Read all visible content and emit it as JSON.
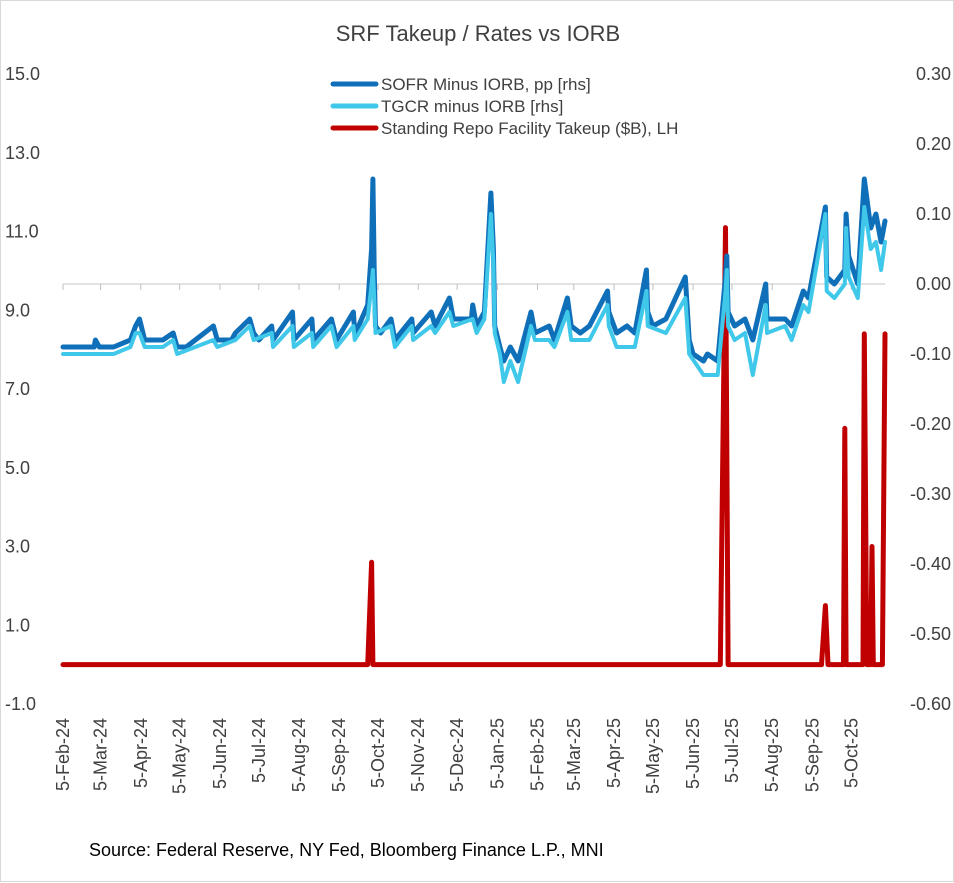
{
  "chart_data": {
    "type": "line",
    "title": "SRF Takeup / Rates vs IORB",
    "source": "Source: Federal Reserve, NY Fed, Bloomberg Finance L.P., MNI",
    "left_axis": {
      "range": [
        -1.0,
        15.0
      ],
      "ticks": [
        -1.0,
        1.0,
        3.0,
        5.0,
        7.0,
        9.0,
        11.0,
        13.0,
        15.0
      ],
      "tick_labels": [
        "-1.0",
        "1.0",
        "3.0",
        "5.0",
        "7.0",
        "9.0",
        "11.0",
        "13.0",
        "15.0"
      ]
    },
    "right_axis": {
      "range": [
        -0.6,
        0.3
      ],
      "ticks": [
        -0.6,
        -0.5,
        -0.4,
        -0.3,
        -0.2,
        -0.1,
        0.0,
        0.1,
        0.2,
        0.3
      ],
      "tick_labels": [
        "-0.60",
        "-0.50",
        "-0.40",
        "-0.30",
        "-0.20",
        "-0.10",
        "0.00",
        "0.10",
        "0.20",
        "0.30"
      ]
    },
    "x_axis": {
      "start_date": "2024-02-05",
      "end_date": "2025-10-31",
      "ticks": [
        {
          "date": "2024-02-05",
          "label": "5-Feb-24"
        },
        {
          "date": "2024-03-05",
          "label": "5-Mar-24"
        },
        {
          "date": "2024-04-05",
          "label": "5-Apr-24"
        },
        {
          "date": "2024-05-05",
          "label": "5-May-24"
        },
        {
          "date": "2024-06-05",
          "label": "5-Jun-24"
        },
        {
          "date": "2024-07-05",
          "label": "5-Jul-24"
        },
        {
          "date": "2024-08-05",
          "label": "5-Aug-24"
        },
        {
          "date": "2024-09-05",
          "label": "5-Sep-24"
        },
        {
          "date": "2024-10-05",
          "label": "5-Oct-24"
        },
        {
          "date": "2024-11-05",
          "label": "5-Nov-24"
        },
        {
          "date": "2024-12-05",
          "label": "5-Dec-24"
        },
        {
          "date": "2025-01-05",
          "label": "5-Jan-25"
        },
        {
          "date": "2025-02-05",
          "label": "5-Feb-25"
        },
        {
          "date": "2025-03-05",
          "label": "5-Mar-25"
        },
        {
          "date": "2025-04-05",
          "label": "5-Apr-25"
        },
        {
          "date": "2025-05-05",
          "label": "5-May-25"
        },
        {
          "date": "2025-06-05",
          "label": "5-Jun-25"
        },
        {
          "date": "2025-07-05",
          "label": "5-Jul-25"
        },
        {
          "date": "2025-08-05",
          "label": "5-Aug-25"
        },
        {
          "date": "2025-09-05",
          "label": "5-Sep-25"
        },
        {
          "date": "2025-10-05",
          "label": "5-Oct-25"
        }
      ]
    },
    "legend": {
      "position": "top-center",
      "entries": [
        {
          "name": "SOFR Minus IORB, pp [rhs]",
          "color": "#0f6fb8"
        },
        {
          "name": "TGCR minus IORB [rhs]",
          "color": "#3fc8ea"
        },
        {
          "name": "Standing Repo Facility Takeup ($B), LH",
          "color": "#c00000"
        }
      ]
    },
    "series": [
      {
        "name": "SOFR Minus IORB, pp [rhs]",
        "axis": "right",
        "color": "#0f6fb8",
        "points": [
          [
            "2024-02-05",
            -0.09
          ],
          [
            "2024-02-15",
            -0.09
          ],
          [
            "2024-02-29",
            -0.09
          ],
          [
            "2024-03-01",
            -0.08
          ],
          [
            "2024-03-04",
            -0.09
          ],
          [
            "2024-03-15",
            -0.09
          ],
          [
            "2024-03-28",
            -0.08
          ],
          [
            "2024-04-01",
            -0.06
          ],
          [
            "2024-04-04",
            -0.05
          ],
          [
            "2024-04-08",
            -0.08
          ],
          [
            "2024-04-15",
            -0.08
          ],
          [
            "2024-04-22",
            -0.08
          ],
          [
            "2024-04-30",
            -0.07
          ],
          [
            "2024-05-03",
            -0.09
          ],
          [
            "2024-05-10",
            -0.09
          ],
          [
            "2024-05-31",
            -0.06
          ],
          [
            "2024-06-03",
            -0.08
          ],
          [
            "2024-06-14",
            -0.08
          ],
          [
            "2024-06-17",
            -0.07
          ],
          [
            "2024-06-28",
            -0.05
          ],
          [
            "2024-07-01",
            -0.07
          ],
          [
            "2024-07-05",
            -0.08
          ],
          [
            "2024-07-15",
            -0.06
          ],
          [
            "2024-07-16",
            -0.08
          ],
          [
            "2024-07-31",
            -0.04
          ],
          [
            "2024-08-01",
            -0.08
          ],
          [
            "2024-08-15",
            -0.05
          ],
          [
            "2024-08-16",
            -0.08
          ],
          [
            "2024-08-30",
            -0.05
          ],
          [
            "2024-09-03",
            -0.08
          ],
          [
            "2024-09-16",
            -0.04
          ],
          [
            "2024-09-17",
            -0.07
          ],
          [
            "2024-09-20",
            -0.06
          ],
          [
            "2024-09-27",
            -0.03
          ],
          [
            "2024-09-30",
            0.05
          ],
          [
            "2024-10-01",
            0.15
          ],
          [
            "2024-10-02",
            0.02
          ],
          [
            "2024-10-03",
            -0.06
          ],
          [
            "2024-10-07",
            -0.07
          ],
          [
            "2024-10-15",
            -0.05
          ],
          [
            "2024-10-18",
            -0.08
          ],
          [
            "2024-10-31",
            -0.05
          ],
          [
            "2024-11-01",
            -0.07
          ],
          [
            "2024-11-15",
            -0.04
          ],
          [
            "2024-11-18",
            -0.06
          ],
          [
            "2024-11-29",
            -0.02
          ],
          [
            "2024-12-02",
            -0.05
          ],
          [
            "2024-12-16",
            -0.05
          ],
          [
            "2024-12-17",
            -0.03
          ],
          [
            "2024-12-20",
            -0.06
          ],
          [
            "2024-12-26",
            -0.04
          ],
          [
            "2024-12-31",
            0.13
          ],
          [
            "2025-01-02",
            0.05
          ],
          [
            "2025-01-03",
            -0.06
          ],
          [
            "2025-01-07",
            -0.09
          ],
          [
            "2025-01-10",
            -0.11
          ],
          [
            "2025-01-15",
            -0.09
          ],
          [
            "2025-01-21",
            -0.11
          ],
          [
            "2025-01-31",
            -0.04
          ],
          [
            "2025-02-03",
            -0.07
          ],
          [
            "2025-02-14",
            -0.06
          ],
          [
            "2025-02-18",
            -0.08
          ],
          [
            "2025-02-28",
            -0.02
          ],
          [
            "2025-03-03",
            -0.06
          ],
          [
            "2025-03-10",
            -0.07
          ],
          [
            "2025-03-17",
            -0.06
          ],
          [
            "2025-03-31",
            -0.01
          ],
          [
            "2025-04-01",
            -0.04
          ],
          [
            "2025-04-07",
            -0.07
          ],
          [
            "2025-04-15",
            -0.06
          ],
          [
            "2025-04-21",
            -0.07
          ],
          [
            "2025-04-30",
            0.02
          ],
          [
            "2025-05-01",
            -0.04
          ],
          [
            "2025-05-05",
            -0.06
          ],
          [
            "2025-05-15",
            -0.05
          ],
          [
            "2025-05-30",
            0.01
          ],
          [
            "2025-06-02",
            -0.08
          ],
          [
            "2025-06-05",
            -0.1
          ],
          [
            "2025-06-13",
            -0.11
          ],
          [
            "2025-06-16",
            -0.1
          ],
          [
            "2025-06-24",
            -0.11
          ],
          [
            "2025-06-30",
            0.01
          ],
          [
            "2025-07-01",
            0.04
          ],
          [
            "2025-07-02",
            -0.04
          ],
          [
            "2025-07-07",
            -0.06
          ],
          [
            "2025-07-15",
            -0.05
          ],
          [
            "2025-07-21",
            -0.08
          ],
          [
            "2025-07-31",
            0.0
          ],
          [
            "2025-08-01",
            -0.05
          ],
          [
            "2025-08-15",
            -0.05
          ],
          [
            "2025-08-20",
            -0.06
          ],
          [
            "2025-08-29",
            -0.01
          ],
          [
            "2025-09-02",
            -0.02
          ],
          [
            "2025-09-15",
            0.11
          ],
          [
            "2025-09-16",
            0.01
          ],
          [
            "2025-09-22",
            0.0
          ],
          [
            "2025-09-30",
            0.02
          ],
          [
            "2025-10-01",
            0.1
          ],
          [
            "2025-10-03",
            0.04
          ],
          [
            "2025-10-10",
            0.0
          ],
          [
            "2025-10-15",
            0.15
          ],
          [
            "2025-10-20",
            0.08
          ],
          [
            "2025-10-24",
            0.1
          ],
          [
            "2025-10-28",
            0.06
          ],
          [
            "2025-10-31",
            0.09
          ]
        ]
      },
      {
        "name": "TGCR minus IORB [rhs]",
        "axis": "right",
        "color": "#3fc8ea",
        "points": [
          [
            "2024-02-05",
            -0.1
          ],
          [
            "2024-02-29",
            -0.1
          ],
          [
            "2024-03-01",
            -0.1
          ],
          [
            "2024-03-15",
            -0.1
          ],
          [
            "2024-03-28",
            -0.09
          ],
          [
            "2024-04-01",
            -0.07
          ],
          [
            "2024-04-04",
            -0.07
          ],
          [
            "2024-04-08",
            -0.09
          ],
          [
            "2024-04-22",
            -0.09
          ],
          [
            "2024-04-30",
            -0.08
          ],
          [
            "2024-05-03",
            -0.1
          ],
          [
            "2024-05-31",
            -0.08
          ],
          [
            "2024-06-03",
            -0.09
          ],
          [
            "2024-06-17",
            -0.08
          ],
          [
            "2024-06-28",
            -0.06
          ],
          [
            "2024-07-01",
            -0.08
          ],
          [
            "2024-07-15",
            -0.07
          ],
          [
            "2024-07-16",
            -0.09
          ],
          [
            "2024-07-31",
            -0.06
          ],
          [
            "2024-08-01",
            -0.09
          ],
          [
            "2024-08-15",
            -0.07
          ],
          [
            "2024-08-16",
            -0.09
          ],
          [
            "2024-08-30",
            -0.06
          ],
          [
            "2024-09-03",
            -0.09
          ],
          [
            "2024-09-16",
            -0.06
          ],
          [
            "2024-09-17",
            -0.08
          ],
          [
            "2024-09-27",
            -0.05
          ],
          [
            "2024-09-30",
            0.0
          ],
          [
            "2024-10-01",
            0.02
          ],
          [
            "2024-10-02",
            -0.02
          ],
          [
            "2024-10-03",
            -0.07
          ],
          [
            "2024-10-15",
            -0.06
          ],
          [
            "2024-10-18",
            -0.09
          ],
          [
            "2024-10-31",
            -0.06
          ],
          [
            "2024-11-01",
            -0.08
          ],
          [
            "2024-11-15",
            -0.06
          ],
          [
            "2024-11-18",
            -0.07
          ],
          [
            "2024-11-29",
            -0.04
          ],
          [
            "2024-12-02",
            -0.06
          ],
          [
            "2024-12-17",
            -0.05
          ],
          [
            "2024-12-20",
            -0.07
          ],
          [
            "2024-12-26",
            -0.05
          ],
          [
            "2024-12-31",
            0.1
          ],
          [
            "2025-01-02",
            0.03
          ],
          [
            "2025-01-03",
            -0.07
          ],
          [
            "2025-01-07",
            -0.1
          ],
          [
            "2025-01-10",
            -0.14
          ],
          [
            "2025-01-15",
            -0.11
          ],
          [
            "2025-01-21",
            -0.14
          ],
          [
            "2025-01-31",
            -0.06
          ],
          [
            "2025-02-03",
            -0.08
          ],
          [
            "2025-02-14",
            -0.08
          ],
          [
            "2025-02-18",
            -0.09
          ],
          [
            "2025-02-28",
            -0.04
          ],
          [
            "2025-03-03",
            -0.08
          ],
          [
            "2025-03-17",
            -0.08
          ],
          [
            "2025-03-31",
            -0.03
          ],
          [
            "2025-04-01",
            -0.06
          ],
          [
            "2025-04-07",
            -0.09
          ],
          [
            "2025-04-21",
            -0.09
          ],
          [
            "2025-04-30",
            -0.01
          ],
          [
            "2025-05-01",
            -0.06
          ],
          [
            "2025-05-15",
            -0.07
          ],
          [
            "2025-05-30",
            -0.02
          ],
          [
            "2025-06-02",
            -0.1
          ],
          [
            "2025-06-13",
            -0.13
          ],
          [
            "2025-06-24",
            -0.13
          ],
          [
            "2025-06-30",
            -0.01
          ],
          [
            "2025-07-01",
            0.02
          ],
          [
            "2025-07-02",
            -0.06
          ],
          [
            "2025-07-07",
            -0.08
          ],
          [
            "2025-07-15",
            -0.07
          ],
          [
            "2025-07-21",
            -0.13
          ],
          [
            "2025-07-31",
            -0.03
          ],
          [
            "2025-08-01",
            -0.07
          ],
          [
            "2025-08-15",
            -0.06
          ],
          [
            "2025-08-20",
            -0.08
          ],
          [
            "2025-08-29",
            -0.03
          ],
          [
            "2025-09-02",
            -0.04
          ],
          [
            "2025-09-15",
            0.1
          ],
          [
            "2025-09-16",
            -0.01
          ],
          [
            "2025-09-22",
            -0.02
          ],
          [
            "2025-09-30",
            0.0
          ],
          [
            "2025-10-01",
            0.08
          ],
          [
            "2025-10-03",
            0.01
          ],
          [
            "2025-10-10",
            -0.02
          ],
          [
            "2025-10-15",
            0.11
          ],
          [
            "2025-10-20",
            0.05
          ],
          [
            "2025-10-24",
            0.06
          ],
          [
            "2025-10-28",
            0.02
          ],
          [
            "2025-10-31",
            0.06
          ]
        ]
      },
      {
        "name": "Standing Repo Facility Takeup ($B), LH",
        "axis": "left",
        "color": "#c00000",
        "points": [
          [
            "2024-02-05",
            0.0
          ],
          [
            "2024-09-27",
            0.0
          ],
          [
            "2024-09-30",
            2.6
          ],
          [
            "2024-10-01",
            0.0
          ],
          [
            "2025-06-26",
            0.0
          ],
          [
            "2025-06-30",
            11.1
          ],
          [
            "2025-07-02",
            0.0
          ],
          [
            "2025-09-12",
            0.0
          ],
          [
            "2025-09-15",
            1.5
          ],
          [
            "2025-09-17",
            0.0
          ],
          [
            "2025-09-29",
            0.0
          ],
          [
            "2025-09-30",
            6.0
          ],
          [
            "2025-10-01",
            0.0
          ],
          [
            "2025-10-14",
            0.0
          ],
          [
            "2025-10-15",
            8.4
          ],
          [
            "2025-10-17",
            0.0
          ],
          [
            "2025-10-20",
            0.0
          ],
          [
            "2025-10-21",
            3.0
          ],
          [
            "2025-10-22",
            0.0
          ],
          [
            "2025-10-29",
            0.0
          ],
          [
            "2025-10-31",
            8.4
          ]
        ]
      }
    ]
  }
}
